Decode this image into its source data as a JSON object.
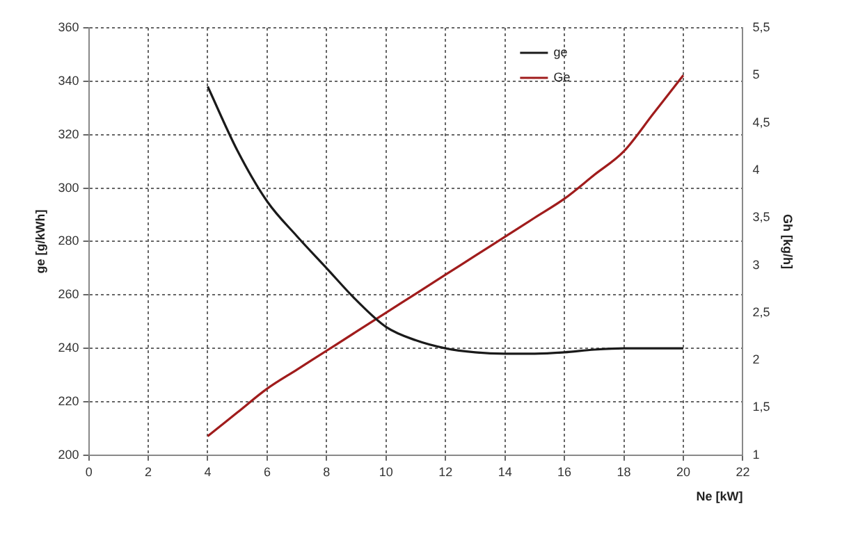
{
  "chart_data": {
    "type": "line",
    "xlabel": "Ne [kW]",
    "ylabel": "ge [g/kWh]",
    "y2label": "Gh [kg/h]",
    "x": [
      4,
      5,
      6,
      7,
      8,
      9,
      10,
      11,
      12,
      13,
      14,
      15,
      16,
      17,
      18,
      19,
      20
    ],
    "series": [
      {
        "name": "ge",
        "color": "#1a1a1a",
        "values": [
          338,
          314,
          295,
          282,
          270,
          258,
          248,
          243,
          240,
          238.5,
          238,
          238,
          238.5,
          239.5,
          240,
          240,
          240
        ]
      },
      {
        "name": "Ge",
        "color": "#a01c1c",
        "axis": "y2",
        "values": [
          1.2,
          1.45,
          1.7,
          1.9,
          2.1,
          2.3,
          2.5,
          2.7,
          2.9,
          3.1,
          3.3,
          3.5,
          3.7,
          3.95,
          4.2,
          4.6,
          5.0
        ]
      }
    ],
    "xlim": [
      0,
      22
    ],
    "xticks": [
      0,
      2,
      4,
      6,
      8,
      10,
      12,
      14,
      16,
      18,
      20,
      22
    ],
    "ylim": [
      200,
      360
    ],
    "yticks": [
      200,
      220,
      240,
      260,
      280,
      300,
      320,
      340,
      360
    ],
    "y2lim": [
      1,
      5.5
    ],
    "y2ticks": [
      1,
      {
        "value": 1.5,
        "label": "1,5"
      },
      2,
      {
        "value": 2.5,
        "label": "2,5"
      },
      3,
      {
        "value": 3.5,
        "label": "3,5"
      },
      4,
      {
        "value": 4.5,
        "label": "4,5"
      },
      5,
      {
        "value": 5.5,
        "label": "5,5"
      }
    ],
    "grid": true,
    "legend": "top right",
    "marker": "none",
    "line_style": "solid"
  }
}
